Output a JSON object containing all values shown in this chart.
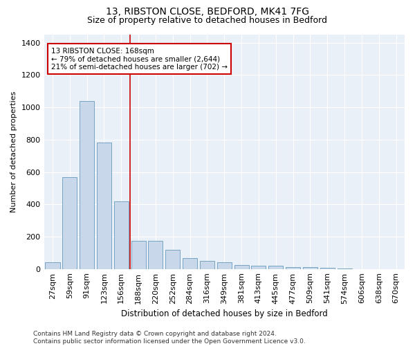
{
  "title1": "13, RIBSTON CLOSE, BEDFORD, MK41 7FG",
  "title2": "Size of property relative to detached houses in Bedford",
  "xlabel": "Distribution of detached houses by size in Bedford",
  "ylabel": "Number of detached properties",
  "categories": [
    "27sqm",
    "59sqm",
    "91sqm",
    "123sqm",
    "156sqm",
    "188sqm",
    "220sqm",
    "252sqm",
    "284sqm",
    "316sqm",
    "349sqm",
    "381sqm",
    "413sqm",
    "445sqm",
    "477sqm",
    "509sqm",
    "541sqm",
    "574sqm",
    "606sqm",
    "638sqm",
    "670sqm"
  ],
  "values": [
    40,
    570,
    1040,
    780,
    420,
    175,
    175,
    120,
    65,
    50,
    42,
    25,
    22,
    20,
    10,
    10,
    7,
    3,
    0,
    0,
    0
  ],
  "bar_color": "#c8d8ea",
  "bar_edge_color": "#6699bb",
  "vline_color": "#cc0000",
  "annotation_text": "13 RIBSTON CLOSE: 168sqm\n← 79% of detached houses are smaller (2,644)\n21% of semi-detached houses are larger (702) →",
  "annotation_box_color": "#ffffff",
  "annotation_box_edge": "#cc0000",
  "ylim": [
    0,
    1450
  ],
  "yticks": [
    0,
    200,
    400,
    600,
    800,
    1000,
    1200,
    1400
  ],
  "bg_color": "#ffffff",
  "plot_bg_color": "#eaf0f8",
  "grid_color": "#ffffff",
  "title1_fontsize": 10,
  "title2_fontsize": 9,
  "xlabel_fontsize": 8.5,
  "ylabel_fontsize": 8,
  "tick_fontsize": 8,
  "annot_fontsize": 7.5,
  "footer": "Contains HM Land Registry data © Crown copyright and database right 2024.\nContains public sector information licensed under the Open Government Licence v3.0.",
  "footer_fontsize": 6.5
}
